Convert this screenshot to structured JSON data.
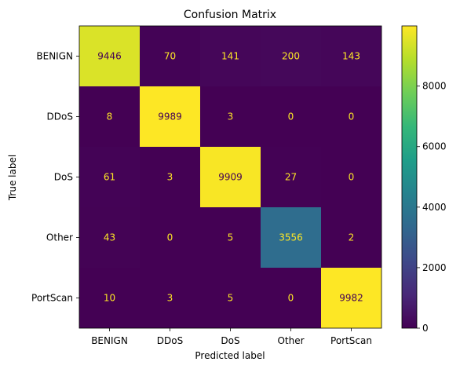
{
  "chart_data": {
    "type": "heatmap",
    "title": "Confusion Matrix",
    "xlabel": "Predicted label",
    "ylabel": "True label",
    "x_categories": [
      "BENIGN",
      "DDoS",
      "DoS",
      "Other",
      "PortScan"
    ],
    "y_categories": [
      "BENIGN",
      "DDoS",
      "DoS",
      "Other",
      "PortScan"
    ],
    "values": [
      [
        9446,
        70,
        141,
        200,
        143
      ],
      [
        8,
        9989,
        3,
        0,
        0
      ],
      [
        61,
        3,
        9909,
        27,
        0
      ],
      [
        43,
        0,
        5,
        3556,
        2
      ],
      [
        10,
        3,
        5,
        0,
        9982
      ]
    ],
    "colormap": "viridis",
    "colorbar": {
      "range": [
        0,
        9989
      ],
      "ticks": [
        0,
        2000,
        4000,
        6000,
        8000
      ]
    },
    "text_color_light": "#fde725",
    "text_color_dark": "#440154"
  }
}
